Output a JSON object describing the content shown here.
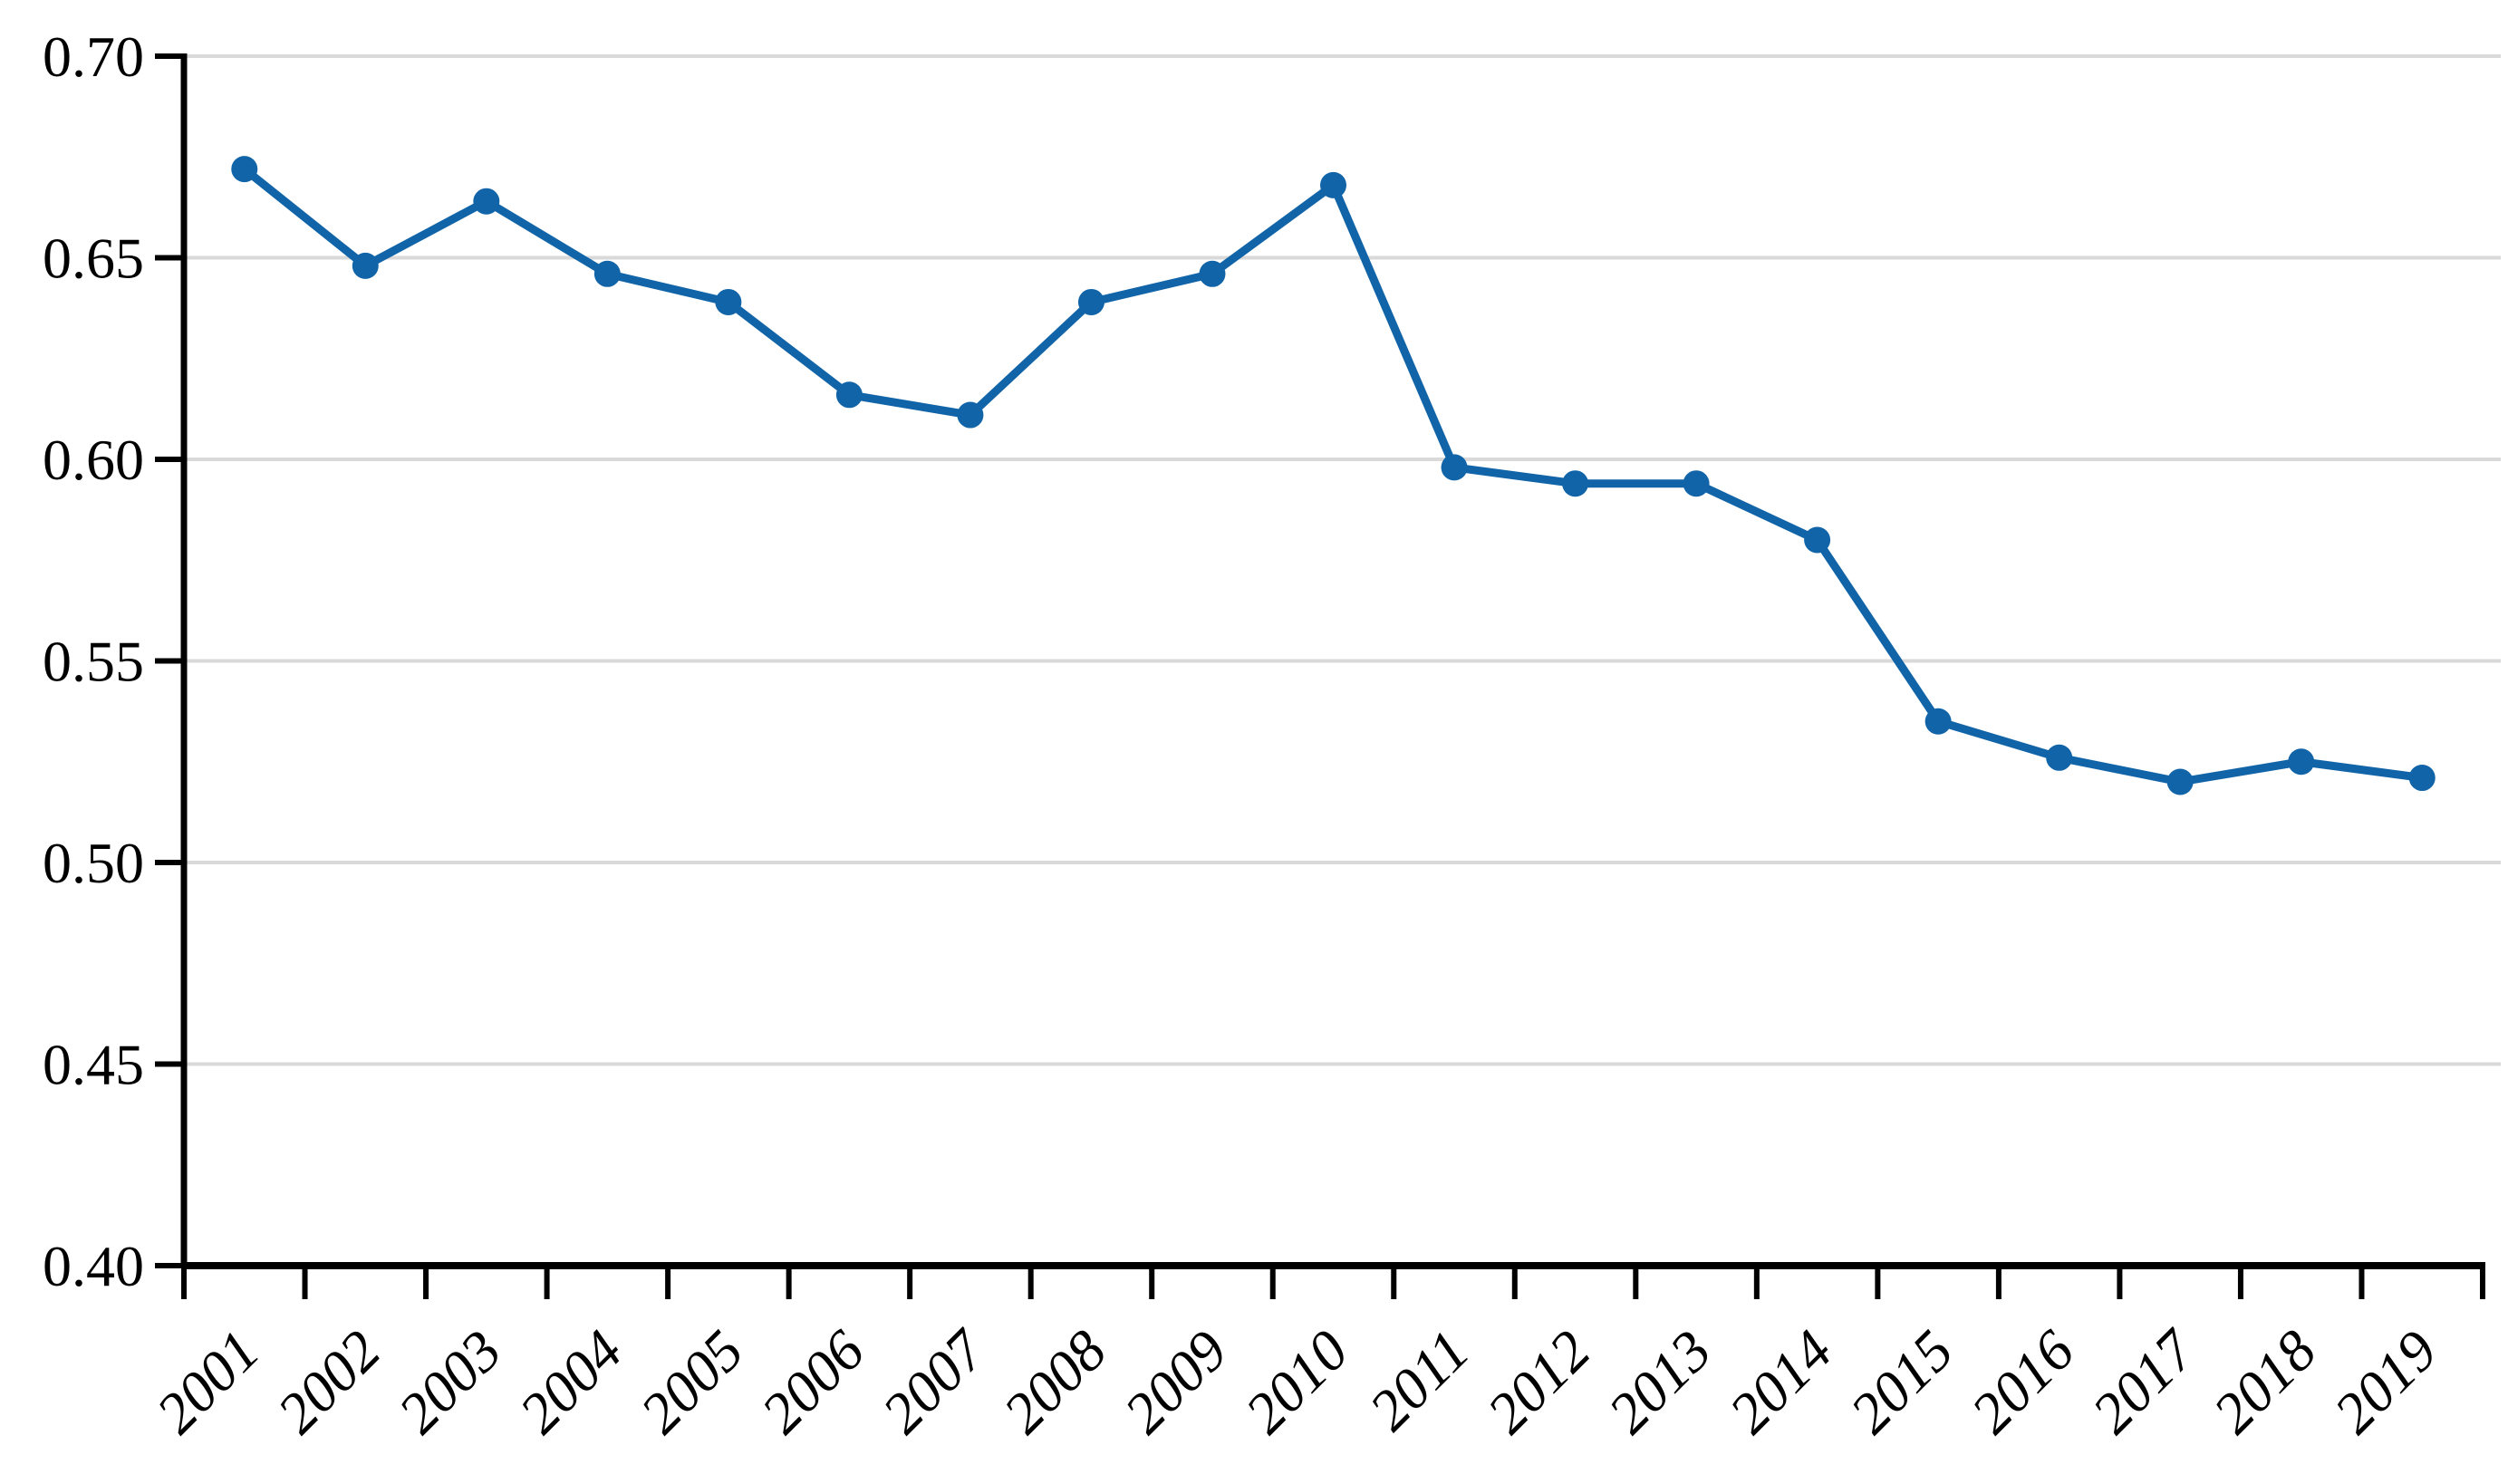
{
  "chart_data": {
    "type": "line",
    "categories": [
      "2001",
      "2002",
      "2003",
      "2004",
      "2005",
      "2006",
      "2007",
      "2008",
      "2009",
      "2010",
      "2011",
      "2012",
      "2013",
      "2014",
      "2015",
      "2016",
      "2017",
      "2018",
      "2019"
    ],
    "values": [
      0.672,
      0.648,
      0.664,
      0.646,
      0.639,
      0.616,
      0.611,
      0.639,
      0.646,
      0.668,
      0.598,
      0.594,
      0.594,
      0.58,
      0.535,
      0.526,
      0.52,
      0.525,
      0.521
    ],
    "y_ticks": [
      "0.40",
      "0.45",
      "0.50",
      "0.55",
      "0.60",
      "0.65",
      "0.70"
    ],
    "y_tick_values": [
      0.4,
      0.45,
      0.5,
      0.55,
      0.6,
      0.65,
      0.7
    ],
    "ylim": [
      0.4,
      0.7
    ],
    "grid": true,
    "legend_position": "none",
    "colors": {
      "line": "#1164a8",
      "marker": "#1164a8",
      "gridline": "#d9d9d9",
      "axis": "#000000",
      "text": "#000000",
      "background": "#ffffff"
    }
  }
}
